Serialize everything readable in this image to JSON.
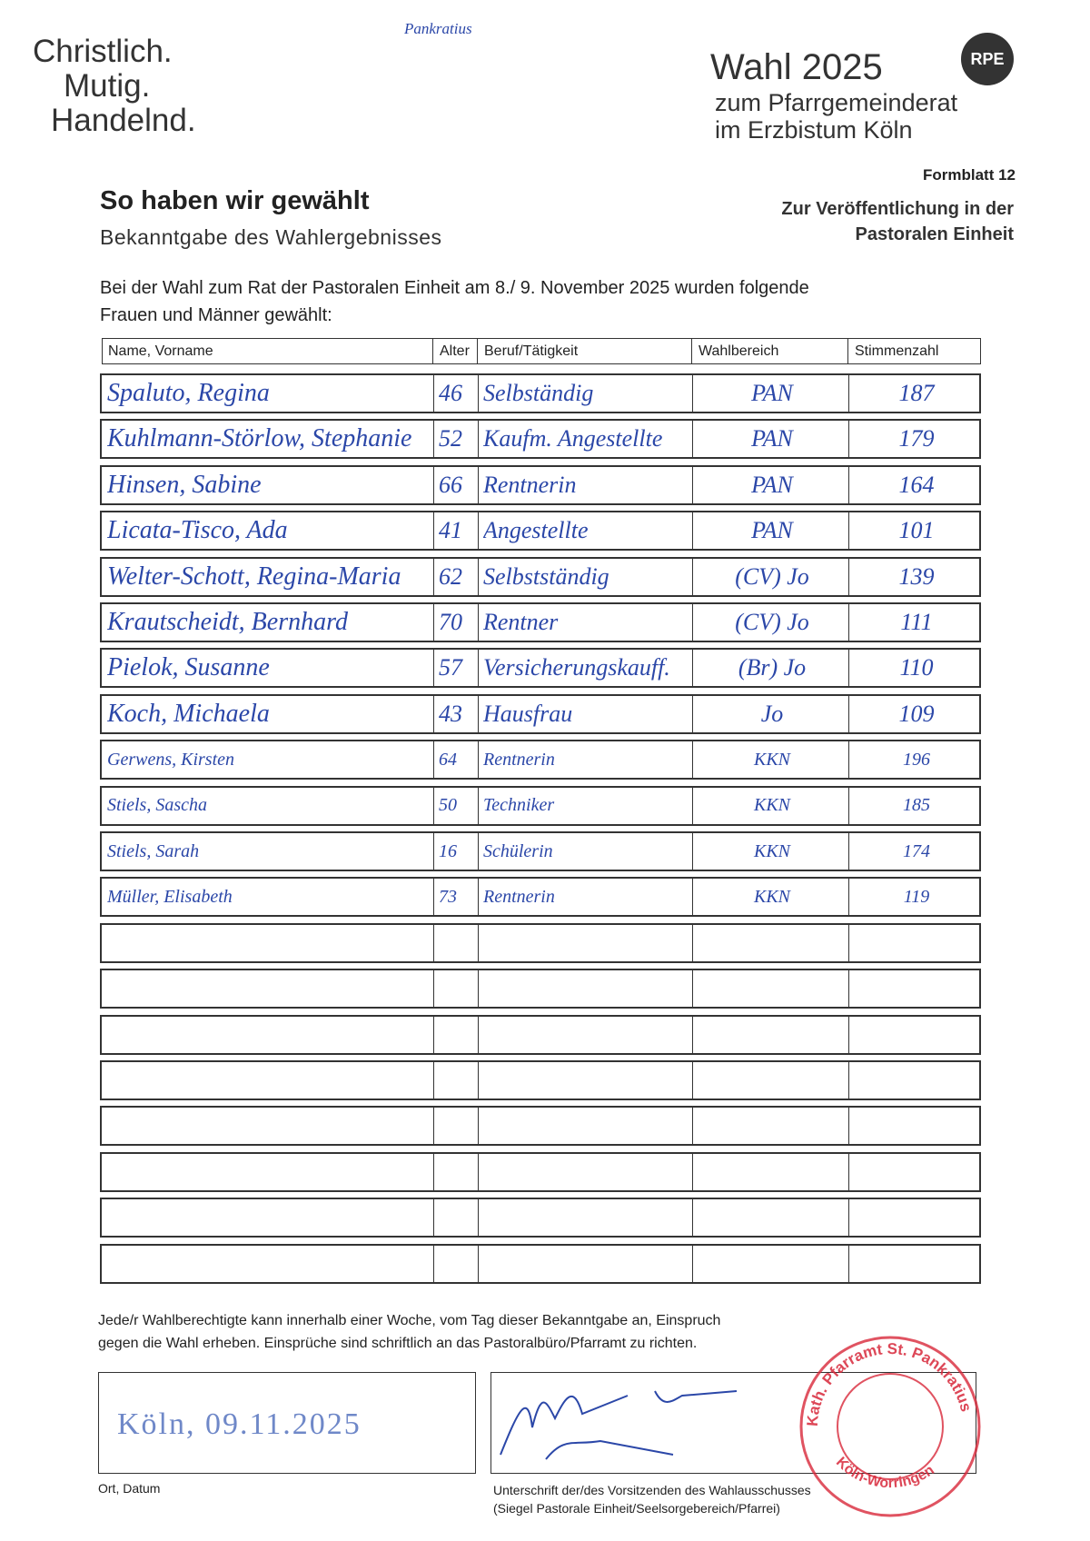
{
  "note": "Pankratius",
  "slogan": [
    "Christlich.",
    "Mutig.",
    "Handelnd."
  ],
  "header": {
    "title": "Wahl 2025",
    "subtitle": [
      "zum Pfarrgemeinderat",
      "im Erzbistum Köln"
    ],
    "badge": "RPE"
  },
  "form_number": "Formblatt 12",
  "heading": "So haben wir gewählt",
  "subheading": "Bekanntgabe des Wahlergebnisses",
  "publication": [
    "Zur Veröffentlichung in der",
    "Pastoralen Einheit"
  ],
  "intro": [
    "Bei der Wahl zum Rat der Pastoralen Einheit  am 8./ 9. November 2025 wurden folgende",
    "Frauen und Männer gewählt:"
  ],
  "table": {
    "columns": [
      "Name, Vorname",
      "Alter",
      "Beruf/Tätigkeit",
      "Wahlbereich",
      "Stimmenzahl"
    ],
    "rows": [
      [
        "Spaluto, Regina",
        46,
        "Selbständig",
        "PAN",
        187
      ],
      [
        "Kuhlmann-Störlow, Stephanie",
        52,
        "Kaufm. Angestellte",
        "PAN",
        179
      ],
      [
        "Hinsen, Sabine",
        66,
        "Rentnerin",
        "PAN",
        164
      ],
      [
        "Licata-Tisco, Ada",
        41,
        "Angestellte",
        "PAN",
        101
      ],
      [
        "Welter-Schott, Regina-Maria",
        62,
        "Selbstständig",
        "(CV) Jo",
        139
      ],
      [
        "Krautscheidt, Bernhard",
        70,
        "Rentner",
        "(CV) Jo",
        111
      ],
      [
        "Pielok, Susanne",
        57,
        "Versicherungskauff.",
        "(Br) Jo",
        110
      ],
      [
        "Koch, Michaela",
        43,
        "Hausfrau",
        "Jo",
        109
      ],
      [
        "Gerwens, Kirsten",
        64,
        "Rentnerin",
        "KKN",
        196
      ],
      [
        "Stiels, Sascha",
        50,
        "Techniker",
        "KKN",
        185
      ],
      [
        "Stiels, Sarah",
        16,
        "Schülerin",
        "KKN",
        174
      ],
      [
        "Müller, Elisabeth",
        73,
        "Rentnerin",
        "KKN",
        119
      ]
    ]
  },
  "notice": [
    "Jede/r Wahlberechtigte kann innerhalb einer Woche, vom Tag dieser Bekanntgabe an, Einspruch",
    "gegen die Wahl erheben. Einsprüche sind schriftlich an das Pastoralbüro/Pfarramt zu richten."
  ],
  "place_date": {
    "value": "Köln, 09.11.2025",
    "label": "Ort, Datum"
  },
  "signature": {
    "label": [
      "Unterschrift der/des Vorsitzenden des Wahlausschusses",
      "(Siegel Pastorale Einheit/Seelsorgebereich/Pfarrei)"
    ]
  },
  "stamp": [
    "Kath. Pfarramt St. Pankratius",
    "Köln-Worringen"
  ]
}
